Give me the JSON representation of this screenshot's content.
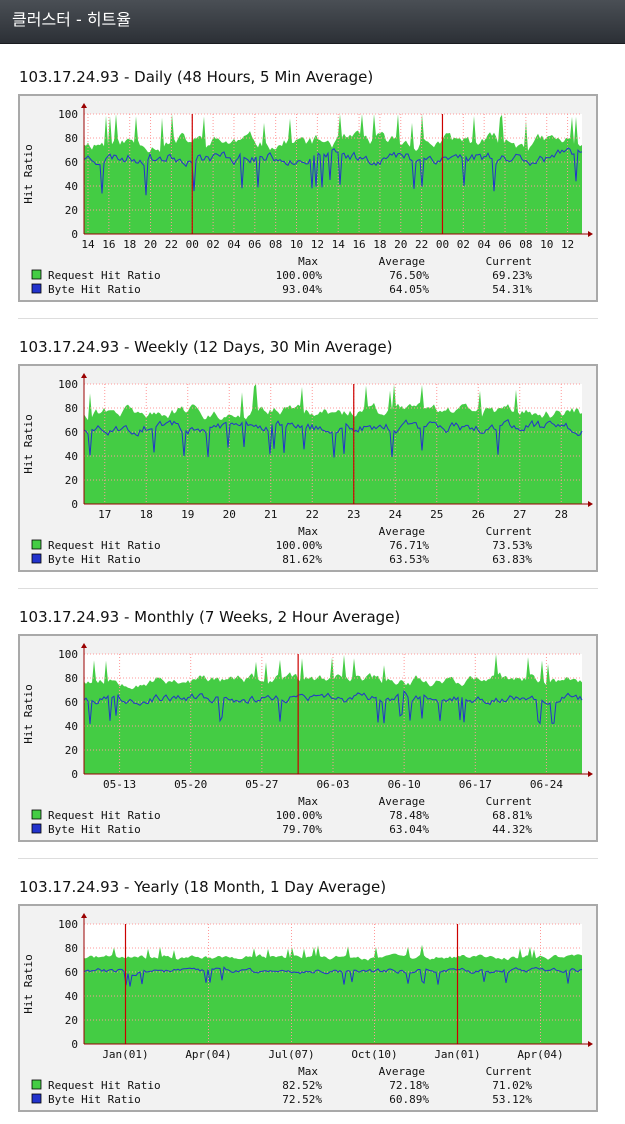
{
  "page": {
    "title": "클러스터 - 히트율"
  },
  "colors": {
    "request": "#44cc44",
    "request_legend": "#44cc44",
    "byte": "#2233cc",
    "grid": "#ff9999",
    "marker": "#cc0000",
    "axis": "#990000"
  },
  "legend": {
    "headers": {
      "max": "Max",
      "average": "Average",
      "current": "Current"
    },
    "request_label": "Request Hit Ratio",
    "byte_label": "Byte Hit Ratio"
  },
  "chart_data": [
    {
      "type": "area",
      "title": "103.17.24.93 - Daily (48 Hours, 5 Min Average)",
      "ylabel": "Hit Ratio",
      "ylim": [
        0,
        100
      ],
      "yticks": [
        "0",
        "20",
        "40",
        "60",
        "80",
        "100"
      ],
      "xtick_labels": [
        "14",
        "16",
        "18",
        "20",
        "22",
        "00",
        "02",
        "04",
        "06",
        "08",
        "10",
        "12",
        "14",
        "16",
        "18",
        "20",
        "22",
        "00",
        "02",
        "04",
        "06",
        "08",
        "10",
        "12"
      ],
      "markers_at_tick_index": [
        5,
        17
      ],
      "series": [
        {
          "name": "Request Hit Ratio",
          "max": "100.00%",
          "average": "76.50%",
          "current": "69.23%",
          "level": 76.5,
          "spread": 14,
          "seed": 11
        },
        {
          "name": "Byte Hit Ratio",
          "max": "93.04%",
          "average": "64.05%",
          "current": "54.31%",
          "level": 64.0,
          "spread": 12,
          "seed": 23
        }
      ]
    },
    {
      "type": "area",
      "title": "103.17.24.93 - Weekly (12 Days, 30 Min Average)",
      "ylabel": "Hit Ratio",
      "ylim": [
        0,
        100
      ],
      "yticks": [
        "0",
        "20",
        "40",
        "60",
        "80",
        "100"
      ],
      "xtick_labels": [
        "17",
        "18",
        "19",
        "20",
        "21",
        "22",
        "23",
        "24",
        "25",
        "26",
        "27",
        "28"
      ],
      "markers_at_tick_index": [
        6
      ],
      "series": [
        {
          "name": "Request Hit Ratio",
          "max": "100.00%",
          "average": "76.71%",
          "current": "73.53%",
          "level": 76.7,
          "spread": 12,
          "seed": 31
        },
        {
          "name": "Byte Hit Ratio",
          "max": "81.62%",
          "average": "63.53%",
          "current": "63.83%",
          "level": 63.5,
          "spread": 11,
          "seed": 43
        }
      ]
    },
    {
      "type": "area",
      "title": "103.17.24.93 - Monthly (7 Weeks, 2 Hour Average)",
      "ylabel": "Hit Ratio",
      "ylim": [
        0,
        100
      ],
      "yticks": [
        "0",
        "20",
        "40",
        "60",
        "80",
        "100"
      ],
      "xtick_labels": [
        "05-13",
        "05-20",
        "05-27",
        "06-03",
        "06-10",
        "06-17",
        "06-24"
      ],
      "markers_at_tick_index": [],
      "marker_fraction": [
        0.43
      ],
      "series": [
        {
          "name": "Request Hit Ratio",
          "max": "100.00%",
          "average": "78.48%",
          "current": "68.81%",
          "level": 78.5,
          "spread": 10,
          "seed": 53
        },
        {
          "name": "Byte Hit Ratio",
          "max": "79.70%",
          "average": "63.04%",
          "current": "44.32%",
          "level": 63.0,
          "spread": 9,
          "seed": 67
        }
      ]
    },
    {
      "type": "area",
      "title": "103.17.24.93 - Yearly (18 Month, 1 Day Average)",
      "ylabel": "Hit Ratio",
      "ylim": [
        0,
        100
      ],
      "yticks": [
        "0",
        "20",
        "40",
        "60",
        "80",
        "100"
      ],
      "xtick_labels": [
        "Jan(01)",
        "Apr(04)",
        "Jul(07)",
        "Oct(10)",
        "Jan(01)",
        "Apr(04)"
      ],
      "markers_at_tick_index": [
        0,
        4
      ],
      "series": [
        {
          "name": "Request Hit Ratio",
          "max": "82.52%",
          "average": "72.18%",
          "current": "71.02%",
          "level": 72.2,
          "spread": 5,
          "seed": 71
        },
        {
          "name": "Byte Hit Ratio",
          "max": "72.52%",
          "average": "60.89%",
          "current": "53.12%",
          "level": 61.0,
          "spread": 5,
          "seed": 83
        }
      ]
    }
  ]
}
